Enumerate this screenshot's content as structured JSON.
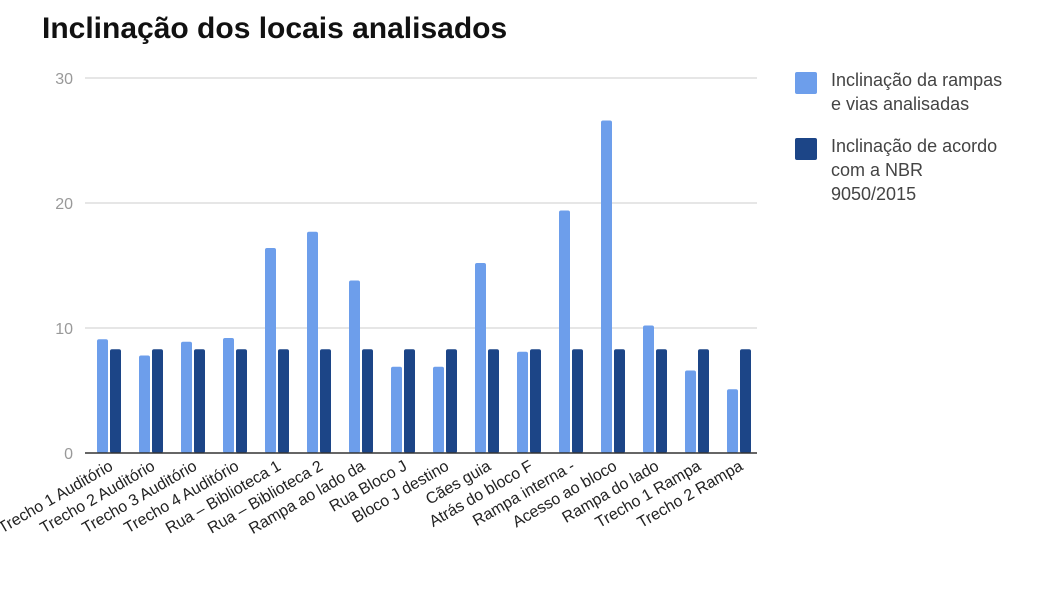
{
  "chart_data": {
    "type": "bar",
    "title": "Inclinação dos locais analisados",
    "xlabel": "",
    "ylabel": "",
    "ylim": [
      0,
      30
    ],
    "yticks": [
      0,
      10,
      20,
      30
    ],
    "grid": true,
    "legend_position": "right",
    "categories": [
      "Trecho 1 Auditório",
      "Trecho 2 Auditório",
      "Trecho 3 Auditório",
      "Trecho 4 Auditório",
      "Rua – Biblioteca 1",
      "Rua – Biblioteca 2",
      "Rampa ao lado da",
      "Rua Bloco J",
      "Bloco J destino",
      "Cães guia",
      "Atrás do bloco F",
      "Rampa interna -",
      "Acesso ao bloco",
      "Rampa do lado",
      "Trecho 1 Rampa",
      "Trecho 2 Rampa"
    ],
    "series": [
      {
        "name": "Inclinação da rampas e vias analisadas",
        "color": "#6d9eeb",
        "values": [
          9.1,
          7.8,
          8.9,
          9.2,
          16.4,
          17.7,
          13.8,
          6.9,
          6.9,
          15.2,
          8.1,
          19.4,
          26.6,
          10.2,
          6.6,
          5.1
        ]
      },
      {
        "name": "Inclinação de acordo com a NBR 9050/2015",
        "color": "#1c4587",
        "values": [
          8.3,
          8.3,
          8.3,
          8.3,
          8.3,
          8.3,
          8.3,
          8.3,
          8.3,
          8.3,
          8.3,
          8.3,
          8.3,
          8.3,
          8.3,
          8.3
        ]
      }
    ]
  }
}
